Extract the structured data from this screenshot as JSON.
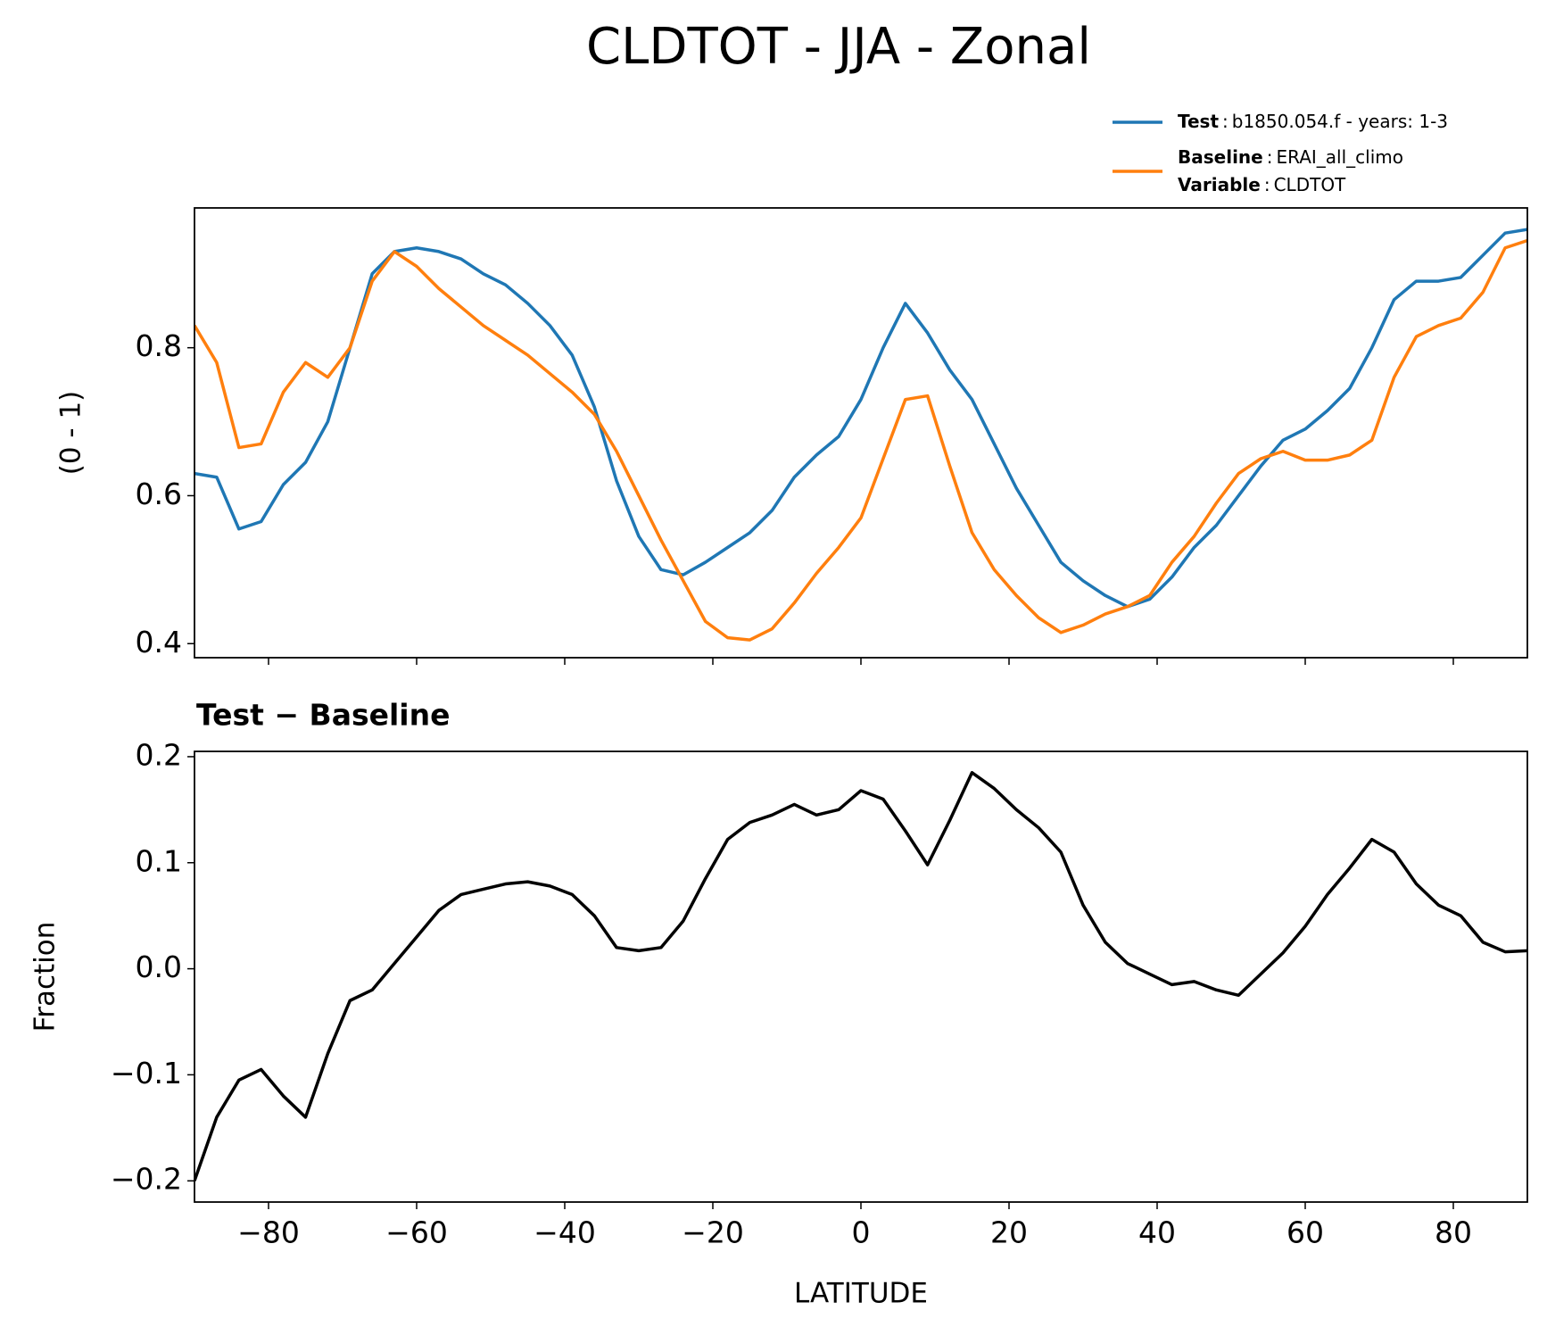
{
  "title": "CLDTOT - JJA - Zonal",
  "chart_data": [
    {
      "type": "line",
      "y_label": "(0 - 1)",
      "legend_separator": ":",
      "legend_extra": {
        "label": "Variable",
        "text": "CLDTOT"
      },
      "x": [
        -90,
        -87,
        -84,
        -81,
        -78,
        -75,
        -72,
        -69,
        -66,
        -63,
        -60,
        -57,
        -54,
        -51,
        -48,
        -45,
        -42,
        -39,
        -36,
        -33,
        -30,
        -27,
        -24,
        -21,
        -18,
        -15,
        -12,
        -9,
        -6,
        -3,
        0,
        3,
        6,
        9,
        12,
        15,
        18,
        21,
        24,
        27,
        30,
        33,
        36,
        39,
        42,
        45,
        48,
        51,
        54,
        57,
        60,
        63,
        66,
        69,
        72,
        75,
        78,
        81,
        84,
        87,
        90
      ],
      "series": [
        {
          "name": "Test",
          "description": "b1850.054.f - years: 1-3",
          "color": "#1f77b4",
          "values": [
            0.63,
            0.625,
            0.555,
            0.565,
            0.615,
            0.645,
            0.7,
            0.8,
            0.9,
            0.93,
            0.935,
            0.93,
            0.92,
            0.9,
            0.885,
            0.86,
            0.83,
            0.79,
            0.72,
            0.62,
            0.545,
            0.5,
            0.493,
            0.51,
            0.53,
            0.55,
            0.58,
            0.625,
            0.655,
            0.68,
            0.73,
            0.8,
            0.86,
            0.82,
            0.77,
            0.73,
            0.67,
            0.61,
            0.56,
            0.51,
            0.485,
            0.465,
            0.45,
            0.46,
            0.49,
            0.53,
            0.56,
            0.6,
            0.64,
            0.675,
            0.69,
            0.715,
            0.745,
            0.8,
            0.865,
            0.89,
            0.89,
            0.895,
            0.925,
            0.955,
            0.96
          ]
        },
        {
          "name": "Baseline",
          "description": "ERAI_all_climo",
          "color": "#ff7f0e",
          "values": [
            0.83,
            0.78,
            0.665,
            0.67,
            0.74,
            0.78,
            0.76,
            0.8,
            0.89,
            0.93,
            0.91,
            0.88,
            0.855,
            0.83,
            0.81,
            0.79,
            0.765,
            0.74,
            0.71,
            0.66,
            0.6,
            0.54,
            0.485,
            0.43,
            0.408,
            0.405,
            0.42,
            0.455,
            0.495,
            0.53,
            0.57,
            0.65,
            0.73,
            0.735,
            0.64,
            0.55,
            0.5,
            0.465,
            0.435,
            0.415,
            0.425,
            0.44,
            0.45,
            0.465,
            0.51,
            0.545,
            0.59,
            0.63,
            0.65,
            0.66,
            0.648,
            0.648,
            0.655,
            0.675,
            0.76,
            0.815,
            0.83,
            0.84,
            0.875,
            0.935,
            0.945
          ]
        }
      ],
      "xlim": [
        -90,
        90
      ],
      "xticks": [
        -80,
        -60,
        -40,
        -20,
        0,
        20,
        40,
        60,
        80
      ],
      "ylim": [
        0.381,
        0.989
      ],
      "yticks": [
        0.4,
        0.6,
        0.8
      ]
    },
    {
      "type": "line",
      "subtitle": "Test − Baseline",
      "y_label": "Fraction",
      "x_label": "LATITUDE",
      "x": [
        -90,
        -87,
        -84,
        -81,
        -78,
        -75,
        -72,
        -69,
        -66,
        -63,
        -60,
        -57,
        -54,
        -51,
        -48,
        -45,
        -42,
        -39,
        -36,
        -33,
        -30,
        -27,
        -24,
        -21,
        -18,
        -15,
        -12,
        -9,
        -6,
        -3,
        0,
        3,
        6,
        9,
        12,
        15,
        18,
        21,
        24,
        27,
        30,
        33,
        36,
        39,
        42,
        45,
        48,
        51,
        54,
        57,
        60,
        63,
        66,
        69,
        72,
        75,
        78,
        81,
        84,
        87,
        90
      ],
      "series": [
        {
          "color": "#000000",
          "values": [
            -0.2,
            -0.14,
            -0.105,
            -0.095,
            -0.12,
            -0.14,
            -0.08,
            -0.03,
            -0.02,
            0.005,
            0.03,
            0.055,
            0.07,
            0.075,
            0.08,
            0.082,
            0.078,
            0.07,
            0.05,
            0.02,
            0.017,
            0.02,
            0.045,
            0.085,
            0.122,
            0.138,
            0.145,
            0.155,
            0.145,
            0.15,
            0.168,
            0.16,
            0.13,
            0.098,
            0.14,
            0.185,
            0.17,
            0.15,
            0.133,
            0.11,
            0.06,
            0.025,
            0.005,
            -0.005,
            -0.015,
            -0.012,
            -0.02,
            -0.025,
            -0.005,
            0.015,
            0.04,
            0.07,
            0.095,
            0.122,
            0.11,
            0.08,
            0.06,
            0.05,
            0.025,
            0.016,
            0.017
          ]
        }
      ],
      "xlim": [
        -90,
        90
      ],
      "xticks": [
        {
          "value": -80,
          "label": "−80"
        },
        {
          "value": -60,
          "label": "−60"
        },
        {
          "value": -40,
          "label": "−40"
        },
        {
          "value": -20,
          "label": "−20"
        },
        0,
        20,
        40,
        60,
        80
      ],
      "ylim": [
        -0.22,
        0.205
      ],
      "yticks": [
        {
          "value": -0.2,
          "label": "−0.2"
        },
        {
          "value": -0.1,
          "label": "−0.1"
        },
        {
          "value": 0,
          "label": "0.0"
        },
        0.1,
        0.2
      ]
    }
  ]
}
